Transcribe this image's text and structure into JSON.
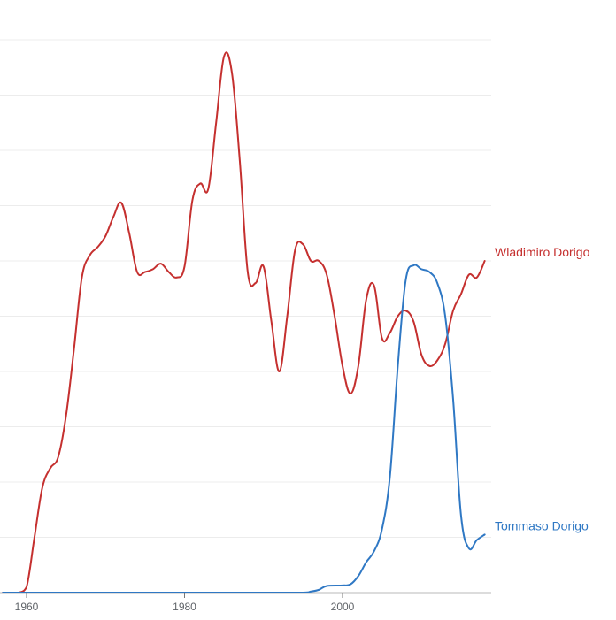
{
  "chart_data": {
    "type": "line",
    "xlabel": "",
    "ylabel": "",
    "xlim": [
      1957,
      2019
    ],
    "ylim": [
      0,
      100
    ],
    "x_ticks": [
      1960,
      1980,
      2000
    ],
    "x_tick_labels": [
      "1960",
      "1980",
      "2000"
    ],
    "y_gridlines": [
      10,
      20,
      30,
      40,
      50,
      60,
      70,
      80,
      90,
      100
    ],
    "grid": "horizontal",
    "legend": "inline labels at line ends",
    "series": [
      {
        "name": "Wladimiro Dorigo",
        "color": "#c5302f",
        "x": [
          1957,
          1958,
          1959,
          1960,
          1961,
          1962,
          1963,
          1964,
          1965,
          1966,
          1967,
          1968,
          1969,
          1970,
          1971,
          1972,
          1973,
          1974,
          1975,
          1976,
          1977,
          1978,
          1979,
          1980,
          1981,
          1982,
          1983,
          1984,
          1985,
          1986,
          1987,
          1988,
          1989,
          1990,
          1991,
          1992,
          1993,
          1994,
          1995,
          1996,
          1997,
          1998,
          1999,
          2000,
          2001,
          2002,
          2003,
          2004,
          2005,
          2006,
          2007,
          2008,
          2009,
          2010,
          2011,
          2012,
          2013,
          2014,
          2015,
          2016,
          2017,
          2018
        ],
        "y": [
          0,
          0,
          0,
          1,
          10,
          19,
          22.5,
          24.5,
          32,
          44,
          57,
          61,
          62.5,
          64.5,
          68,
          70.5,
          65,
          58,
          58,
          58.5,
          59.5,
          58,
          57,
          59,
          71,
          74,
          73,
          85,
          97,
          94,
          78,
          58,
          56,
          59,
          49,
          40,
          50,
          62,
          63,
          60,
          60,
          57.5,
          50,
          41,
          36,
          41,
          53,
          55.5,
          46,
          47,
          50,
          51,
          49,
          43,
          41,
          42,
          45,
          51,
          54,
          57.5,
          57,
          60
        ]
      },
      {
        "name": "Tommaso Dorigo",
        "color": "#2f78c4",
        "x": [
          1957,
          1960,
          1970,
          1980,
          1990,
          1995,
          1996,
          1997,
          1998,
          2000,
          2001,
          2002,
          2003,
          2004,
          2005,
          2006,
          2007,
          2008,
          2009,
          2010,
          2011,
          2012,
          2013,
          2014,
          2015,
          2016,
          2017,
          2018
        ],
        "y": [
          0,
          0,
          0,
          0,
          0,
          0,
          0.2,
          0.5,
          1.2,
          1.3,
          1.5,
          3,
          5.5,
          7.5,
          11.5,
          21,
          41,
          56.5,
          59.2,
          58.5,
          58,
          56,
          50,
          35,
          14,
          8,
          9.5,
          10.5
        ]
      }
    ]
  }
}
